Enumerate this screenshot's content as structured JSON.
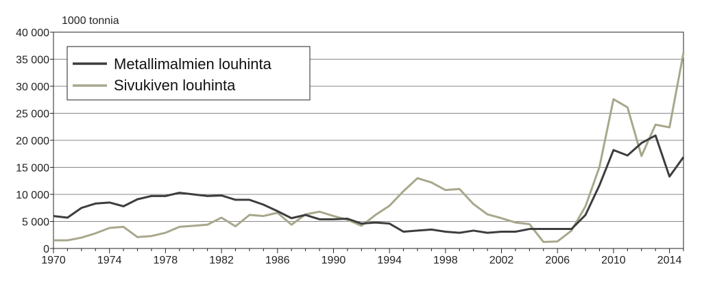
{
  "chart_data": {
    "type": "line",
    "unit_label": "1000 tonnia",
    "xlim": [
      1970,
      2015
    ],
    "ylim": [
      0,
      40000
    ],
    "x_ticks": [
      1970,
      1974,
      1978,
      1982,
      1986,
      1990,
      1994,
      1998,
      2002,
      2006,
      2010,
      2014
    ],
    "y_ticks": [
      0,
      5000,
      10000,
      15000,
      20000,
      25000,
      30000,
      35000,
      40000
    ],
    "y_tick_labels": [
      "0",
      "5 000",
      "10 000",
      "15 000",
      "20 000",
      "25 000",
      "30 000",
      "35 000",
      "40 000"
    ],
    "grid": "horizontal",
    "legend_position": "top-left",
    "x": [
      1970,
      1971,
      1972,
      1973,
      1974,
      1975,
      1976,
      1977,
      1978,
      1979,
      1980,
      1981,
      1982,
      1983,
      1984,
      1985,
      1986,
      1987,
      1988,
      1989,
      1990,
      1991,
      1992,
      1993,
      1994,
      1995,
      1996,
      1997,
      1998,
      1999,
      2000,
      2001,
      2002,
      2003,
      2004,
      2005,
      2006,
      2007,
      2008,
      2009,
      2010,
      2011,
      2012,
      2013,
      2014,
      2015
    ],
    "series": [
      {
        "name": "Metallimalmien louhinta",
        "color": "#3d3d3d",
        "values": [
          6000,
          5700,
          7500,
          8300,
          8500,
          7800,
          9100,
          9700,
          9700,
          10300,
          10000,
          9700,
          9800,
          9000,
          9000,
          8100,
          6900,
          5600,
          6200,
          5400,
          5400,
          5500,
          4600,
          4800,
          4600,
          3100,
          3300,
          3500,
          3100,
          2900,
          3300,
          2900,
          3100,
          3100,
          3600,
          3600,
          3600,
          3600,
          6200,
          11700,
          18200,
          17200,
          19500,
          20900,
          13300,
          16900
        ]
      },
      {
        "name": "Sivukiven louhinta",
        "color": "#a8a78c",
        "values": [
          1500,
          1500,
          2000,
          2800,
          3800,
          4000,
          2100,
          2300,
          2900,
          4000,
          4200,
          4400,
          5700,
          4100,
          6200,
          6000,
          6600,
          4400,
          6300,
          6800,
          6000,
          5300,
          4200,
          6200,
          7900,
          10600,
          13000,
          12200,
          10800,
          11000,
          8200,
          6300,
          5600,
          4800,
          4500,
          1200,
          1300,
          3300,
          7800,
          15100,
          27600,
          26100,
          17100,
          22900,
          22400,
          36200
        ]
      }
    ]
  }
}
